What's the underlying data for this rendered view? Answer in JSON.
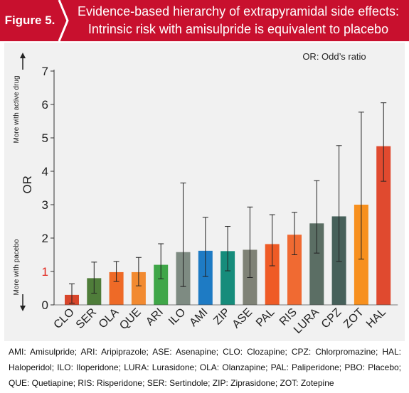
{
  "header": {
    "figure_label": "Figure 5.",
    "title_line1": "Evidence-based hierarchy of extrapyramidal side effects:",
    "title_line2": "Intrinsic risk with amisulpride is equivalent to placebo"
  },
  "colors": {
    "header_red": "#c8102e",
    "panel_gray": "#f1f1f1"
  },
  "chart_data": {
    "type": "bar",
    "ylabel": "OR",
    "ylim": [
      0,
      7
    ],
    "yticks": [
      "0",
      "1",
      "2",
      "3",
      "4",
      "5",
      "6",
      "7"
    ],
    "reference_tick_label": "1",
    "annotation": "OR: Odd’s ratio",
    "arrow_up_label": "More with active drug",
    "arrow_down_label": "More with pacebo",
    "grid": false,
    "categories": [
      "CLO",
      "SER",
      "OLA",
      "QUE",
      "ARI",
      "ILO",
      "AMI",
      "ZIP",
      "ASE",
      "PAL",
      "RIS",
      "LURA",
      "CPZ",
      "ZOT",
      "HAL"
    ],
    "values": [
      0.3,
      0.8,
      0.98,
      0.98,
      1.2,
      1.58,
      1.62,
      1.61,
      1.65,
      1.82,
      2.1,
      2.44,
      2.65,
      3.0,
      4.75
    ],
    "ci_low": [
      0.05,
      0.35,
      0.7,
      0.57,
      0.78,
      0.55,
      0.85,
      1.02,
      0.82,
      1.17,
      1.5,
      1.55,
      1.3,
      1.37,
      3.7
    ],
    "ci_high": [
      0.63,
      1.28,
      1.3,
      1.42,
      1.83,
      3.65,
      2.62,
      2.35,
      2.93,
      2.7,
      2.77,
      3.72,
      4.77,
      5.77,
      6.05
    ],
    "bar_colors": [
      "#d8462b",
      "#4f7d3a",
      "#ee6a27",
      "#f28a30",
      "#3fa648",
      "#7e8b82",
      "#1e7bc4",
      "#168c7b",
      "#7f8276",
      "#ef5b26",
      "#f06a32",
      "#5b6e64",
      "#46605a",
      "#f7901e",
      "#e04a2f"
    ]
  },
  "footer": {
    "abbreviations": "AMI: Amisulpride; ARI: Aripiprazole; ASE: Asenapine; CLO: Clozapine; CPZ: Chlorpromazine; HAL: Haloperidol; ILO: Iloperidone; LURA: Lurasidone; OLA: Olanzapine; PAL: Paliperidone; PBO: Placebo; QUE: Quetiapine; RIS: Risperidone; SER: Sertindole; ZIP: Ziprasidone; ZOT: Zotepine"
  }
}
